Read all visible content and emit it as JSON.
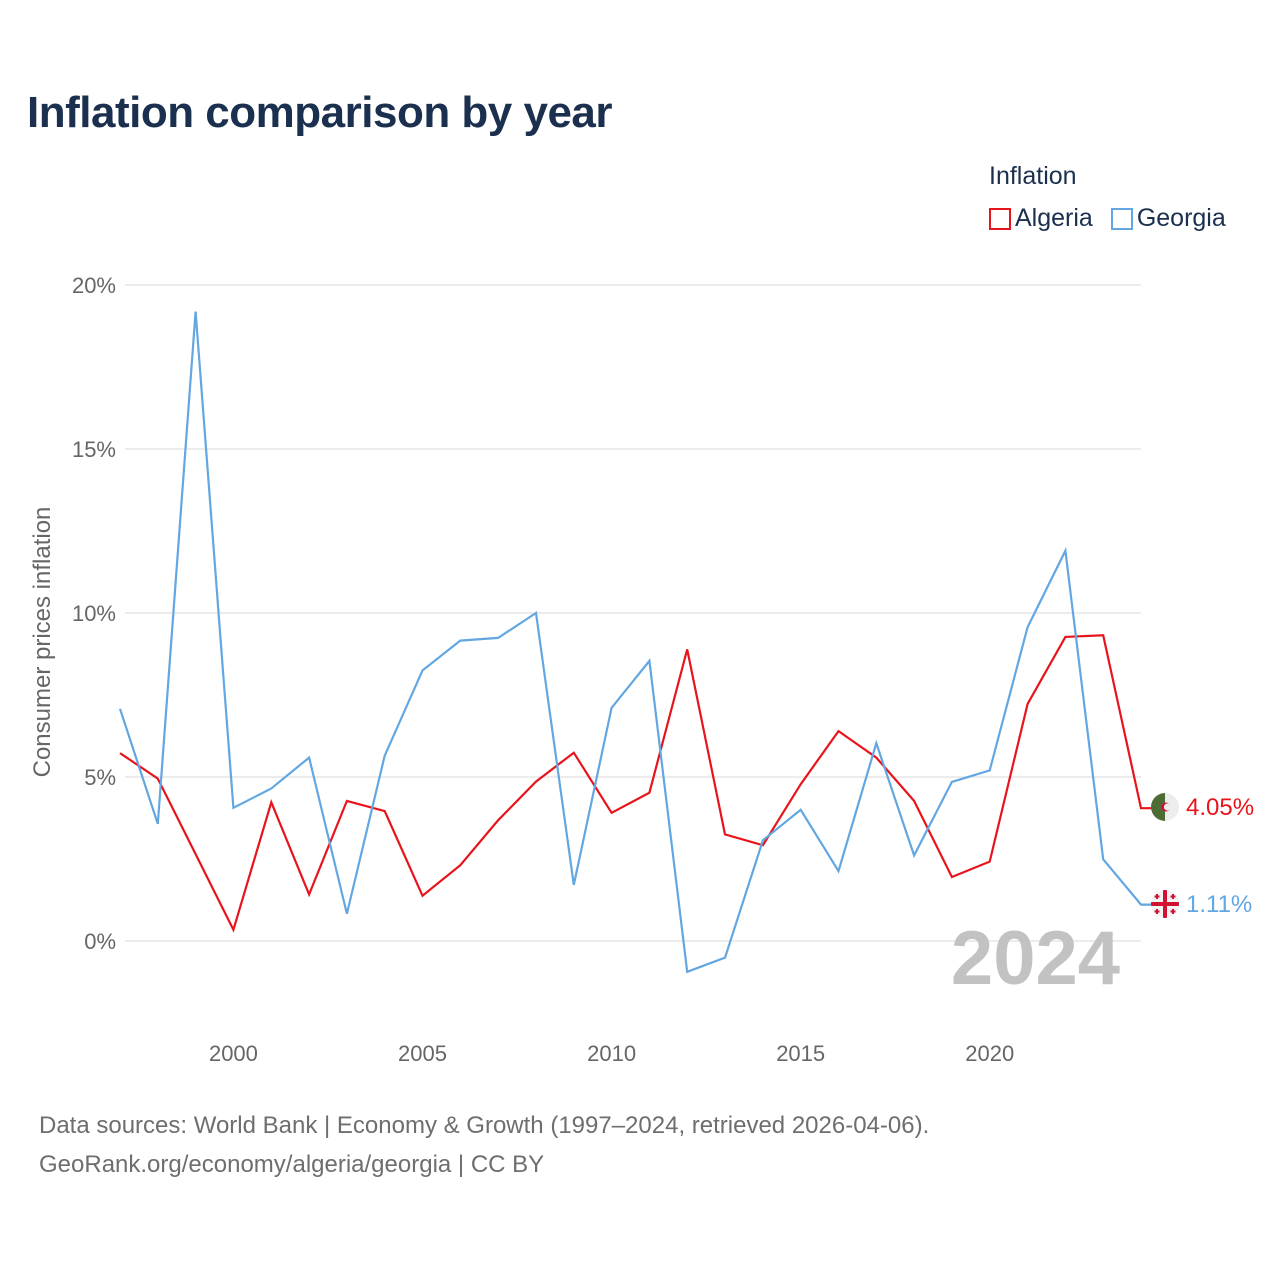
{
  "title": "Inflation comparison by year",
  "legend": {
    "title": "Inflation",
    "items": [
      {
        "label": "Algeria",
        "color": "#e8141c"
      },
      {
        "label": "Georgia",
        "color": "#62a7e2"
      }
    ]
  },
  "footer": {
    "line1": "Data sources: World Bank | Economy & Growth (1997–2024, retrieved 2026-04-06).",
    "line2": "GeoRank.org/economy/algeria/georgia | CC BY"
  },
  "chart_data": {
    "type": "line",
    "title": "Inflation comparison by year",
    "xlabel": "",
    "ylabel": "Consumer prices inflation",
    "xlim": [
      1997,
      2024
    ],
    "ylim": [
      -2,
      20
    ],
    "x_ticks": [
      2000,
      2005,
      2010,
      2015,
      2020
    ],
    "y_ticks": [
      0,
      5,
      10,
      15,
      20
    ],
    "y_tick_labels": [
      "0%",
      "5%",
      "10%",
      "15%",
      "20%"
    ],
    "grid": true,
    "legend_position": "top-right",
    "watermark": "2024",
    "x": [
      1997,
      1998,
      1999,
      2000,
      2001,
      2002,
      2003,
      2004,
      2005,
      2006,
      2007,
      2008,
      2009,
      2010,
      2011,
      2012,
      2013,
      2014,
      2015,
      2016,
      2017,
      2018,
      2019,
      2020,
      2021,
      2022,
      2023,
      2024
    ],
    "series": [
      {
        "name": "Algeria",
        "color": "#e8141c",
        "end_label": "4.05%",
        "flag": "algeria-flag",
        "values": [
          5.73,
          4.95,
          2.65,
          0.34,
          4.23,
          1.42,
          4.27,
          3.96,
          1.38,
          2.31,
          3.68,
          4.86,
          5.74,
          3.91,
          4.52,
          8.89,
          3.25,
          2.92,
          4.78,
          6.4,
          5.59,
          4.27,
          1.95,
          2.42,
          7.23,
          9.27,
          9.32,
          4.05
        ]
      },
      {
        "name": "Georgia",
        "color": "#62a7e2",
        "end_label": "1.11%",
        "flag": "georgia-flag",
        "values": [
          7.08,
          3.57,
          19.19,
          4.06,
          4.65,
          5.59,
          0.83,
          5.65,
          8.25,
          9.16,
          9.24,
          10.0,
          1.71,
          7.11,
          8.54,
          -0.94,
          -0.51,
          3.07,
          4.0,
          2.13,
          6.03,
          2.61,
          4.85,
          5.2,
          9.57,
          11.9,
          2.49,
          1.11
        ]
      }
    ]
  }
}
